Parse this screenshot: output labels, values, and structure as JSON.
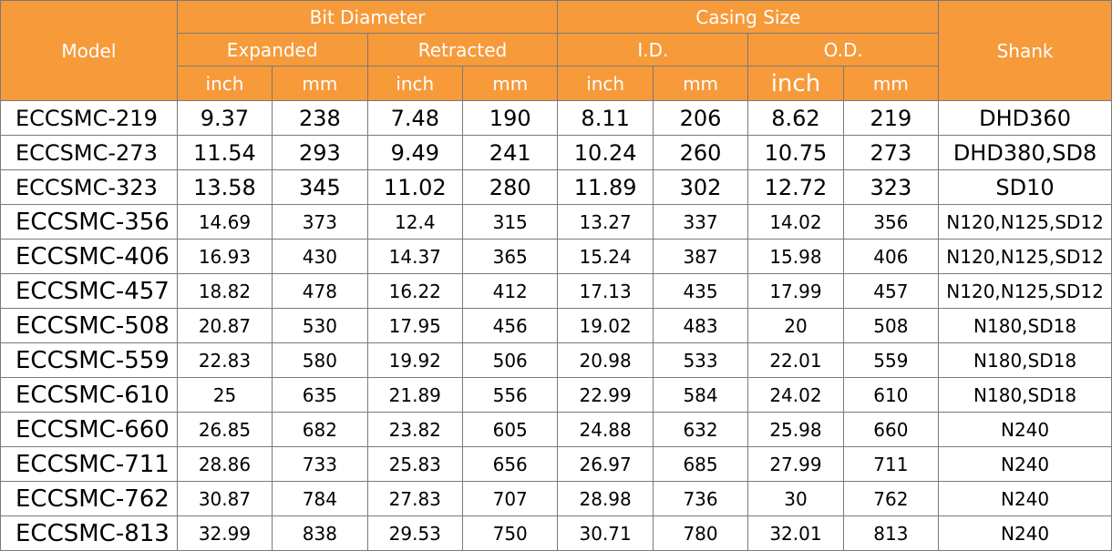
{
  "headers": {
    "model": "Model",
    "bit_diameter": "Bit Diameter",
    "casing_size": "Casing Size",
    "shank": "Shank",
    "expanded": "Expanded",
    "retracted": "Retracted",
    "id": "I.D.",
    "od": "O.D.",
    "inch": "inch",
    "mm": "mm"
  },
  "rows": [
    [
      "ECCSMC-219",
      "9.37",
      "238",
      "7.48",
      "190",
      "8.11",
      "206",
      "8.62",
      "219",
      "DHD360"
    ],
    [
      "ECCSMC-273",
      "11.54",
      "293",
      "9.49",
      "241",
      "10.24",
      "260",
      "10.75",
      "273",
      "DHD380,SD8"
    ],
    [
      "ECCSMC-323",
      "13.58",
      "345",
      "11.02",
      "280",
      "11.89",
      "302",
      "12.72",
      "323",
      "SD10"
    ],
    [
      "ECCSMC-356",
      "14.69",
      "373",
      "12.4",
      "315",
      "13.27",
      "337",
      "14.02",
      "356",
      "N120,N125,SD12"
    ],
    [
      "ECCSMC-406",
      "16.93",
      "430",
      "14.37",
      "365",
      "15.24",
      "387",
      "15.98",
      "406",
      "N120,N125,SD12"
    ],
    [
      "ECCSMC-457",
      "18.82",
      "478",
      "16.22",
      "412",
      "17.13",
      "435",
      "17.99",
      "457",
      "N120,N125,SD12"
    ],
    [
      "ECCSMC-508",
      "20.87",
      "530",
      "17.95",
      "456",
      "19.02",
      "483",
      "20",
      "508",
      "N180,SD18"
    ],
    [
      "ECCSMC-559",
      "22.83",
      "580",
      "19.92",
      "506",
      "20.98",
      "533",
      "22.01",
      "559",
      "N180,SD18"
    ],
    [
      "ECCSMC-610",
      "25",
      "635",
      "21.89",
      "556",
      "22.99",
      "584",
      "24.02",
      "610",
      "N180,SD18"
    ],
    [
      "ECCSMC-660",
      "26.85",
      "682",
      "23.82",
      "605",
      "24.88",
      "632",
      "25.98",
      "660",
      "N240"
    ],
    [
      "ECCSMC-711",
      "28.86",
      "733",
      "25.83",
      "656",
      "26.97",
      "685",
      "27.99",
      "711",
      "N240"
    ],
    [
      "ECCSMC-762",
      "30.87",
      "784",
      "27.83",
      "707",
      "28.98",
      "736",
      "30",
      "762",
      "N240"
    ],
    [
      "ECCSMC-813",
      "32.99",
      "838",
      "29.53",
      "750",
      "30.71",
      "780",
      "32.01",
      "813",
      "N240"
    ]
  ],
  "colors": {
    "header_bg": "#f79a3a",
    "header_text": "#ffffff",
    "border": "#7a7a7a"
  }
}
